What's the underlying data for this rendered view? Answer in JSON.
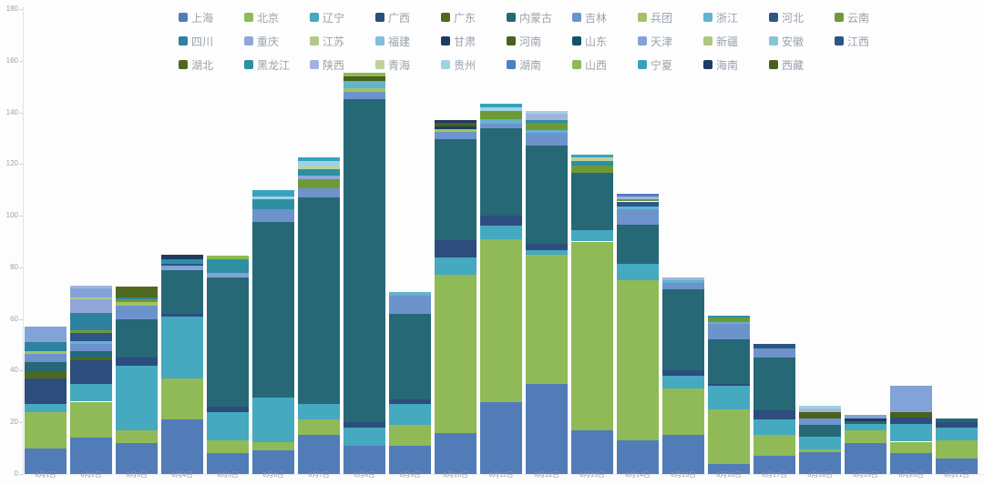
{
  "chart_data": {
    "type": "bar",
    "stacked": true,
    "title": "",
    "xlabel": "",
    "ylabel": "",
    "ylim": [
      0,
      180
    ],
    "yticks": [
      0,
      20,
      40,
      60,
      80,
      100,
      120,
      140,
      160,
      180
    ],
    "grid": false,
    "legend_position": "top",
    "x": [
      "6月1日",
      "6月2日",
      "6月3日",
      "6月4日",
      "6月5日",
      "6月6日",
      "6月7日",
      "6月8日",
      "6月9日",
      "6月10日",
      "6月11日",
      "6月12日",
      "6月13日",
      "6月14日",
      "6月15日",
      "6月16日",
      "6月17日",
      "6月18日",
      "6月19日",
      "6月20日",
      "6月21日"
    ],
    "series": [
      {
        "name": "上海",
        "color": "#527cb8",
        "values": [
          10,
          14,
          12,
          21,
          8,
          9,
          15,
          11,
          11,
          16,
          28,
          35,
          17,
          13,
          15,
          4,
          7,
          8.5,
          12,
          8,
          6
        ]
      },
      {
        "name": "北京",
        "color": "#8fba57",
        "values": [
          14,
          14,
          5,
          16,
          5,
          3.5,
          6,
          0,
          8,
          61,
          63,
          50,
          73,
          62,
          18,
          21,
          8,
          1,
          5,
          4.5,
          7
        ]
      },
      {
        "name": "辽宁",
        "color": "#45a9c0",
        "values": [
          3,
          7,
          25,
          24,
          11,
          17,
          6,
          7,
          8,
          7,
          5,
          1.5,
          4.5,
          6.5,
          5,
          9,
          6,
          5,
          2.5,
          7,
          5
        ]
      },
      {
        "name": "广西",
        "color": "#2c4d7d",
        "values": [
          10,
          9,
          3,
          1,
          2,
          0,
          0,
          2,
          2,
          6.5,
          4,
          2.5,
          0,
          0,
          2,
          1,
          3.5,
          0,
          0,
          2.5,
          2
        ]
      },
      {
        "name": "广东",
        "color": "#4f691d",
        "values": [
          2.5,
          1,
          0,
          0,
          0,
          0,
          0,
          0,
          0,
          0,
          0,
          0,
          0,
          0,
          0,
          0,
          0,
          0,
          0,
          0,
          0
        ]
      },
      {
        "name": "内蒙古",
        "color": "#266876",
        "values": [
          4,
          2.5,
          15,
          17,
          50,
          68,
          80,
          125,
          33,
          39,
          34,
          38,
          22,
          15,
          31.5,
          17,
          20.5,
          4.5,
          1,
          0,
          1.5
        ]
      },
      {
        "name": "吉林",
        "color": "#6d93cc",
        "values": [
          3,
          3,
          5,
          0,
          0,
          5,
          3.5,
          3,
          7,
          3,
          1.5,
          5,
          0,
          6,
          2.5,
          6,
          3.5,
          2.5,
          0,
          0,
          0
        ]
      },
      {
        "name": "兵团",
        "color": "#a4c264",
        "values": [
          1,
          0,
          1.5,
          0,
          0,
          0,
          0,
          1.5,
          0,
          1,
          0,
          0,
          0,
          0,
          0,
          0,
          0,
          0,
          0,
          0,
          0
        ]
      },
      {
        "name": "浙江",
        "color": "#62b4cf",
        "values": [
          0,
          1,
          0,
          0,
          0,
          0,
          0,
          2.5,
          1.5,
          0,
          2,
          1,
          0,
          1,
          1,
          1,
          0,
          0,
          0,
          0,
          0
        ]
      },
      {
        "name": "河北",
        "color": "#2d568b",
        "values": [
          0,
          3,
          0,
          0,
          0,
          0,
          0,
          0,
          0,
          0,
          0,
          0,
          0,
          2,
          0,
          0,
          0,
          0,
          0,
          0,
          0
        ]
      },
      {
        "name": "云南",
        "color": "#6f9937",
        "values": [
          0,
          1,
          1,
          0,
          0,
          0,
          3.5,
          0,
          0,
          0,
          3,
          3,
          3,
          1,
          0,
          1.5,
          0,
          0,
          0,
          0,
          0
        ]
      },
      {
        "name": "四川",
        "color": "#2e819f",
        "values": [
          3.5,
          7,
          1,
          0,
          0,
          0,
          0,
          0,
          0,
          0,
          0,
          0,
          0,
          0,
          0,
          0,
          0,
          0,
          0,
          0,
          0
        ]
      },
      {
        "name": "重庆",
        "color": "#8fa6d6",
        "values": [
          0,
          5,
          0,
          0,
          0,
          0,
          1.5,
          0,
          0,
          0,
          0,
          0,
          0,
          0,
          0,
          0,
          0,
          0,
          0,
          0,
          0
        ]
      },
      {
        "name": "江苏",
        "color": "#b3c98c",
        "values": [
          0,
          1,
          0,
          0,
          0,
          0,
          0,
          0,
          0,
          0,
          0,
          0,
          0,
          0,
          0,
          0,
          0,
          0,
          0,
          0,
          0
        ]
      },
      {
        "name": "福建",
        "color": "#7fbfda",
        "values": [
          0,
          0,
          0,
          0,
          0,
          0,
          0,
          0,
          0,
          0,
          0,
          0,
          0,
          0,
          0,
          0,
          0,
          0,
          0,
          0,
          0
        ]
      },
      {
        "name": "甘肃",
        "color": "#1e3c62",
        "values": [
          0,
          0,
          0,
          0,
          0,
          0,
          0,
          0,
          0,
          1,
          0,
          0,
          0,
          0,
          0,
          0,
          0,
          0,
          1,
          0,
          0
        ]
      },
      {
        "name": "河南",
        "color": "#49611c",
        "values": [
          0,
          0,
          0,
          0,
          0,
          0,
          0,
          2,
          0,
          1.5,
          0,
          0,
          0,
          0,
          0,
          0,
          0,
          2.5,
          0,
          2,
          0
        ]
      },
      {
        "name": "山东",
        "color": "#14526b",
        "values": [
          0,
          0,
          0,
          0,
          0,
          0,
          0,
          0,
          0,
          0,
          0,
          0,
          0,
          0,
          0,
          0,
          0,
          0,
          0,
          0,
          0
        ]
      },
      {
        "name": "天津",
        "color": "#82a3d8",
        "values": [
          6,
          3.5,
          0,
          1.5,
          2,
          0,
          0,
          0,
          0,
          0,
          0,
          0,
          0,
          0,
          0,
          0,
          0,
          0,
          1.5,
          10,
          0
        ]
      },
      {
        "name": "新疆",
        "color": "#abc87e",
        "values": [
          0,
          0,
          0,
          0,
          0,
          0,
          0,
          0,
          0,
          0,
          0,
          0,
          0,
          0,
          0,
          0,
          0,
          0,
          0,
          0,
          0
        ]
      },
      {
        "name": "安徽",
        "color": "#83c6db",
        "values": [
          0,
          0,
          0,
          0,
          0,
          0,
          0,
          0,
          0,
          0,
          0,
          0,
          0,
          0,
          0,
          0,
          0,
          0,
          0,
          0,
          0
        ]
      },
      {
        "name": "江西",
        "color": "#2a5585",
        "values": [
          0,
          0,
          0,
          1,
          0,
          0,
          0,
          0,
          0,
          0,
          0,
          0,
          0,
          0,
          0,
          0,
          2,
          0,
          0,
          0,
          0
        ]
      },
      {
        "name": "湖北",
        "color": "#50691e",
        "values": [
          0,
          0,
          4,
          0,
          0,
          0,
          0,
          0,
          0,
          0,
          0,
          0,
          0,
          0,
          0,
          0,
          0,
          0,
          0,
          0,
          0
        ]
      },
      {
        "name": "黑龙江",
        "color": "#2e8fa3",
        "values": [
          0,
          0,
          0,
          1.5,
          5,
          4,
          2.5,
          0,
          0,
          0,
          0,
          1,
          1.5,
          0,
          0,
          0.7,
          0,
          0,
          0,
          0,
          0
        ]
      },
      {
        "name": "陕西",
        "color": "#a3b3dc",
        "values": [
          0,
          1,
          0,
          0,
          0,
          0,
          0,
          0,
          0,
          0,
          0,
          2.5,
          0,
          1,
          1,
          0,
          0,
          1.5,
          0,
          0,
          0
        ]
      },
      {
        "name": "青海",
        "color": "#bdd29b",
        "values": [
          0,
          0,
          0,
          0,
          0,
          0,
          1,
          0,
          0,
          0,
          0,
          0,
          1.5,
          0,
          0,
          0,
          0,
          0,
          0,
          0,
          0
        ]
      },
      {
        "name": "贵州",
        "color": "#9ed3e3",
        "values": [
          0,
          0,
          0,
          0,
          0,
          1,
          2,
          0,
          0,
          0,
          1.5,
          1,
          0,
          0,
          0,
          0,
          0,
          1,
          0,
          0,
          0
        ]
      },
      {
        "name": "湖南",
        "color": "#4e7fc4",
        "values": [
          0,
          0,
          0,
          0,
          0,
          0,
          0,
          0,
          0,
          0,
          0,
          0,
          0,
          1,
          0,
          0,
          0,
          0,
          0,
          0,
          0
        ]
      },
      {
        "name": "山西",
        "color": "#8cba52",
        "values": [
          0,
          0,
          0,
          0,
          1.5,
          0,
          0,
          1.5,
          0,
          0,
          0,
          0,
          0,
          0,
          0,
          0,
          0,
          0,
          0,
          0,
          0
        ]
      },
      {
        "name": "宁夏",
        "color": "#36a3be",
        "values": [
          0,
          0,
          0,
          0,
          0,
          2.5,
          1.5,
          0,
          0,
          0,
          1.5,
          0,
          1,
          0,
          0,
          0,
          0,
          0,
          0,
          0,
          0
        ]
      },
      {
        "name": "海南",
        "color": "#1d3c63",
        "values": [
          0,
          0,
          0,
          2,
          0,
          0,
          0,
          0,
          0,
          1,
          0,
          0,
          0,
          0,
          0,
          0,
          0,
          0,
          0,
          0,
          0
        ]
      },
      {
        "name": "西藏",
        "color": "#4a6319",
        "values": [
          0,
          0,
          0,
          0,
          0,
          0,
          0,
          0,
          0,
          0,
          0,
          0,
          0,
          0,
          0,
          0,
          0,
          0,
          0,
          0,
          0
        ]
      }
    ]
  }
}
